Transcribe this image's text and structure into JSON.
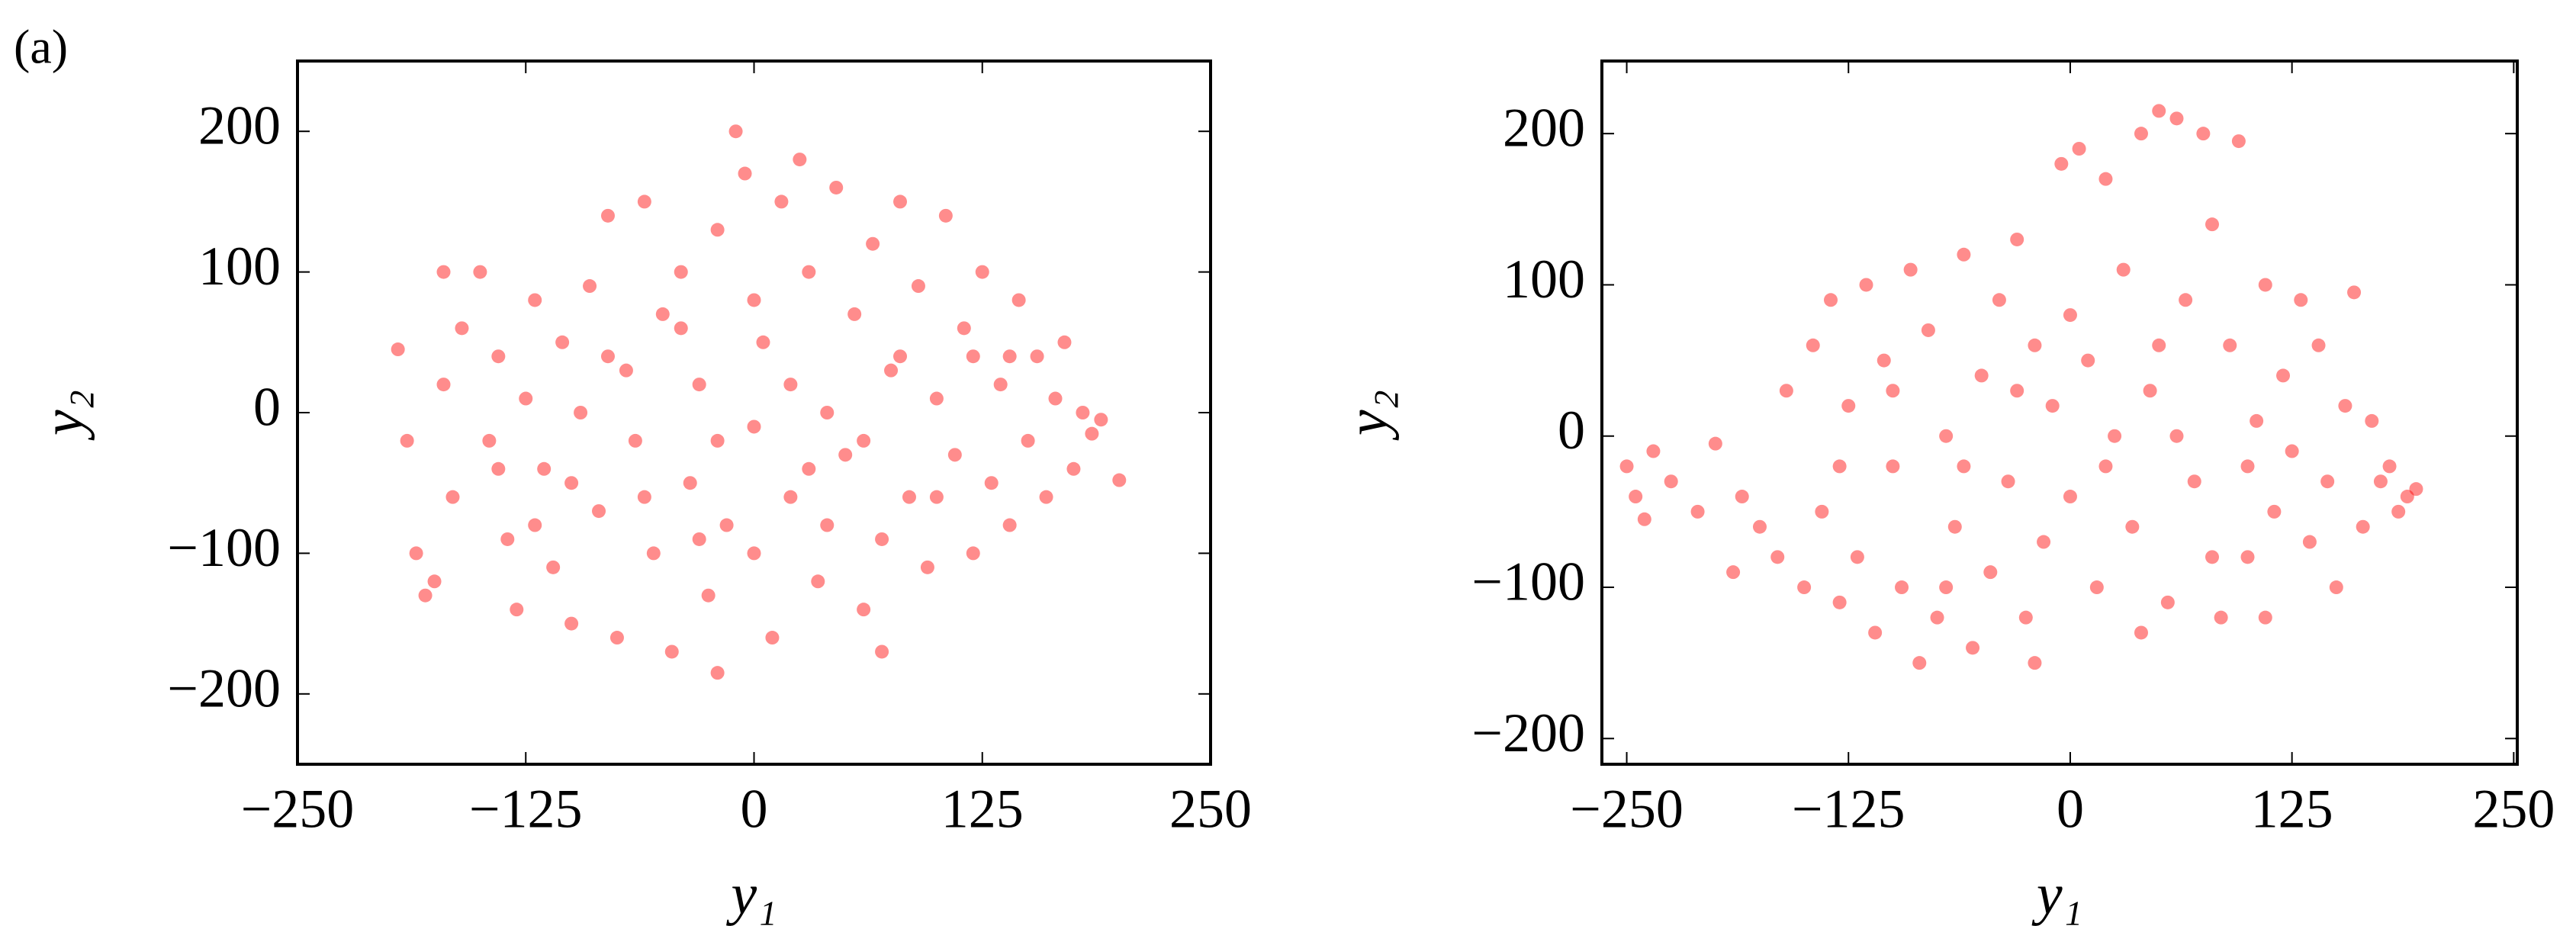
{
  "panel_label": "(a)",
  "chart_data": [
    {
      "type": "scatter",
      "xlabel": "y₁",
      "ylabel": "y₂",
      "color": "#ff0000",
      "xlim": [
        -250,
        250
      ],
      "ylim": [
        -250,
        250
      ],
      "xticks": [
        {
          "value": -250,
          "label": "−250"
        },
        {
          "value": -125,
          "label": "−125"
        },
        0,
        125,
        250
      ],
      "yticks": [
        {
          "value": -200,
          "label": "−200"
        },
        {
          "value": -100,
          "label": "−100"
        },
        0,
        100,
        200
      ],
      "x": [
        -195,
        -190,
        -180,
        -175,
        -170,
        -165,
        -160,
        -150,
        -145,
        -140,
        -135,
        -130,
        -125,
        -120,
        -115,
        -110,
        -105,
        -100,
        -95,
        -90,
        -85,
        -80,
        -75,
        -70,
        -65,
        -60,
        -55,
        -50,
        -45,
        -40,
        -35,
        -30,
        -25,
        -20,
        -15,
        -10,
        -5,
        0,
        5,
        10,
        15,
        20,
        25,
        30,
        35,
        40,
        45,
        50,
        55,
        60,
        65,
        70,
        75,
        80,
        85,
        90,
        95,
        100,
        105,
        110,
        115,
        120,
        125,
        130,
        135,
        140,
        145,
        150,
        155,
        160,
        165,
        170,
        175,
        180,
        185,
        190,
        200,
        -185,
        -170,
        -100,
        -60,
        -20,
        20,
        60,
        100,
        -80,
        -40,
        40,
        80,
        120,
        -120,
        0,
        0,
        -140,
        140,
        30,
        -30,
        70,
        -20
      ],
      "y": [
        45,
        -20,
        -130,
        -120,
        20,
        -60,
        60,
        100,
        -20,
        40,
        -90,
        -140,
        10,
        80,
        -40,
        -110,
        50,
        -150,
        0,
        90,
        -70,
        140,
        -160,
        30,
        -20,
        150,
        -100,
        70,
        -170,
        100,
        -50,
        20,
        -130,
        130,
        -80,
        200,
        170,
        -10,
        50,
        -160,
        150,
        -60,
        180,
        100,
        -120,
        0,
        160,
        -30,
        70,
        -140,
        120,
        -90,
        30,
        150,
        -60,
        90,
        -110,
        10,
        140,
        -30,
        60,
        -100,
        100,
        -50,
        20,
        -80,
        80,
        -20,
        40,
        -60,
        10,
        50,
        -40,
        0,
        -15,
        -5,
        -48,
        -100,
        100,
        -50,
        -60,
        -20,
        20,
        -20,
        -60,
        40,
        60,
        -80,
        40,
        40,
        -80,
        80,
        -100,
        -40,
        40,
        -40,
        -90,
        -170,
        -185
      ]
    },
    {
      "type": "scatter",
      "xlabel": "y₁",
      "ylabel": "y₂",
      "color": "#ff0000",
      "xlim": [
        -264,
        252
      ],
      "ylim": [
        -217,
        248
      ],
      "xticks": [
        {
          "value": -250,
          "label": "−250"
        },
        {
          "value": -125,
          "label": "−125"
        },
        0,
        125,
        250
      ],
      "yticks": [
        {
          "value": -200,
          "label": "−200"
        },
        {
          "value": -100,
          "label": "−100"
        },
        0,
        100,
        200
      ],
      "x": [
        -250,
        -245,
        -240,
        -235,
        -225,
        -210,
        -200,
        -190,
        -185,
        -175,
        -165,
        -160,
        -150,
        -145,
        -140,
        -135,
        -130,
        -125,
        -120,
        -115,
        -110,
        -105,
        -100,
        -95,
        -90,
        -85,
        -80,
        -75,
        -70,
        -65,
        -60,
        -55,
        -50,
        -45,
        -40,
        -35,
        -30,
        -25,
        -20,
        -15,
        -10,
        -5,
        0,
        5,
        10,
        15,
        20,
        25,
        30,
        35,
        40,
        45,
        50,
        55,
        60,
        65,
        70,
        75,
        80,
        85,
        90,
        95,
        100,
        105,
        110,
        115,
        120,
        125,
        130,
        135,
        140,
        145,
        150,
        155,
        160,
        165,
        170,
        175,
        180,
        185,
        190,
        195,
        -60,
        -100,
        20,
        60,
        100,
        80,
        -30,
        0,
        50,
        -130,
        -70,
        110,
        -20,
        40
      ],
      "y": [
        -20,
        -40,
        -55,
        -10,
        -30,
        -50,
        -5,
        -90,
        -40,
        -60,
        -80,
        30,
        -100,
        60,
        -50,
        90,
        -110,
        20,
        -80,
        100,
        -130,
        50,
        -20,
        -100,
        110,
        -150,
        70,
        -120,
        0,
        -60,
        120,
        -140,
        40,
        -90,
        90,
        -30,
        130,
        -120,
        60,
        -70,
        20,
        180,
        -40,
        190,
        50,
        -100,
        170,
        0,
        110,
        -60,
        200,
        30,
        215,
        -110,
        210,
        90,
        -30,
        200,
        140,
        -120,
        60,
        195,
        -80,
        10,
        100,
        -50,
        40,
        -10,
        90,
        -70,
        60,
        -30,
        -100,
        20,
        95,
        -60,
        10,
        -30,
        -20,
        -50,
        -40,
        -35,
        -20,
        30,
        -20,
        0,
        -20,
        -80,
        30,
        80,
        60,
        -20,
        -100,
        -120,
        -150,
        -130
      ]
    }
  ]
}
